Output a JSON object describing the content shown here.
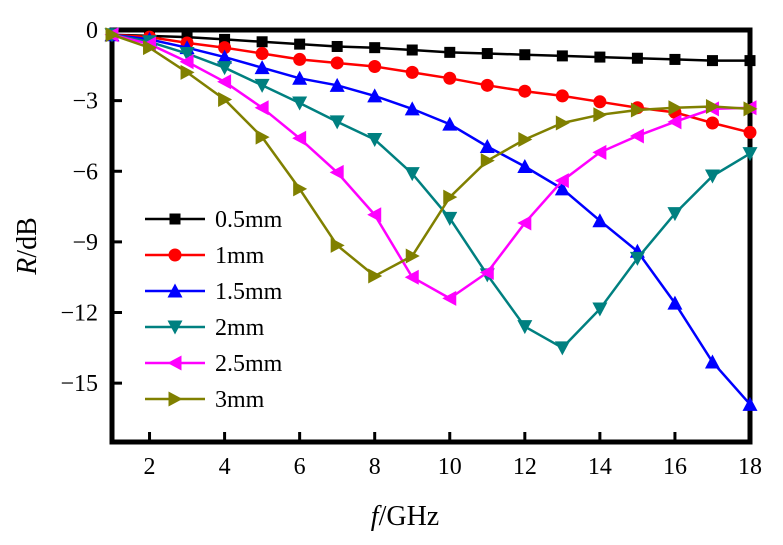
{
  "chart_data": {
    "type": "line",
    "title": "",
    "xlabel_italic": "f",
    "xlabel_rest": "/GHz",
    "ylabel_italic": "R",
    "ylabel_rest": "/dB",
    "xlim": [
      1,
      18
    ],
    "ylim": [
      -17.5,
      0
    ],
    "xticks": [
      2,
      4,
      6,
      8,
      10,
      12,
      14,
      16,
      18
    ],
    "yticks": [
      0,
      -3,
      -6,
      -9,
      -12,
      -15
    ],
    "ytick_labels": [
      "0",
      "−3",
      "−6",
      "−9",
      "−12",
      "−15"
    ],
    "grid": false,
    "legend_position": "left-center",
    "x": [
      1,
      2,
      3,
      4,
      5,
      6,
      7,
      8,
      9,
      10,
      11,
      12,
      13,
      14,
      15,
      16,
      17,
      18
    ],
    "series": [
      {
        "name": "0.5mm",
        "color": "#000000",
        "marker": "square",
        "values": [
          -0.2,
          -0.25,
          -0.3,
          -0.4,
          -0.5,
          -0.6,
          -0.7,
          -0.75,
          -0.85,
          -0.95,
          -1.0,
          -1.05,
          -1.1,
          -1.15,
          -1.2,
          -1.25,
          -1.3,
          -1.3
        ]
      },
      {
        "name": "1mm",
        "color": "#ff0000",
        "marker": "circle",
        "values": [
          -0.2,
          -0.3,
          -0.55,
          -0.75,
          -1.0,
          -1.25,
          -1.4,
          -1.55,
          -1.8,
          -2.05,
          -2.35,
          -2.6,
          -2.8,
          -3.05,
          -3.3,
          -3.5,
          -3.95,
          -4.35
        ]
      },
      {
        "name": "1.5mm",
        "color": "#0000ff",
        "marker": "triangle-up",
        "values": [
          -0.2,
          -0.4,
          -0.75,
          -1.15,
          -1.6,
          -2.05,
          -2.35,
          -2.8,
          -3.35,
          -4.0,
          -4.95,
          -5.8,
          -6.75,
          -8.1,
          -9.4,
          -11.6,
          -14.1,
          -15.9
        ]
      },
      {
        "name": "2mm",
        "color": "#008080",
        "marker": "triangle-down",
        "values": [
          -0.2,
          -0.5,
          -1.0,
          -1.6,
          -2.35,
          -3.1,
          -3.9,
          -4.65,
          -6.1,
          -8.0,
          -10.4,
          -12.6,
          -13.5,
          -11.85,
          -9.7,
          -7.8,
          -6.2,
          -5.25
        ]
      },
      {
        "name": "2.5mm",
        "color": "#ff00ff",
        "marker": "triangle-left",
        "values": [
          -0.2,
          -0.6,
          -1.35,
          -2.2,
          -3.3,
          -4.6,
          -6.05,
          -7.85,
          -10.5,
          -11.4,
          -10.3,
          -8.2,
          -6.4,
          -5.2,
          -4.5,
          -3.9,
          -3.35,
          -3.3
        ]
      },
      {
        "name": "3mm",
        "color": "#808000",
        "marker": "triangle-right",
        "values": [
          -0.2,
          -0.75,
          -1.8,
          -2.95,
          -4.55,
          -6.75,
          -9.15,
          -10.45,
          -9.6,
          -7.1,
          -5.55,
          -4.65,
          -3.95,
          -3.6,
          -3.4,
          -3.3,
          -3.25,
          -3.35
        ]
      }
    ]
  }
}
